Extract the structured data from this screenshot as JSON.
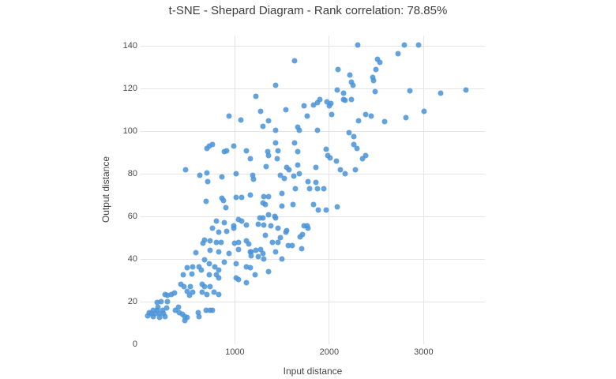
{
  "title": "t-SNE - Shepard Diagram - Rank correlation: 78.85%",
  "colors": {
    "background": "#ffffff",
    "marker": "#4B94D8",
    "gridline": "#e5e5e5",
    "text": "#444444"
  },
  "chart_data": {
    "type": "scatter",
    "title": "t-SNE - Shepard Diagram - Rank correlation: 78.85%",
    "xlabel": "Input distance",
    "ylabel": "Output distance",
    "xlim": [
      0,
      3650
    ],
    "ylim": [
      0,
      145
    ],
    "x_ticks": [
      1000,
      2000,
      3000
    ],
    "y_ticks": [
      0,
      20,
      40,
      60,
      80,
      100,
      120,
      140
    ],
    "grid": true,
    "legend": false,
    "marker_color": "#4B94D8",
    "points": [
      [
        940,
        107
      ],
      [
        1065,
        105.5
      ],
      [
        2305,
        140.5
      ],
      [
        1630,
        133
      ],
      [
        2513,
        134
      ],
      [
        2538,
        132.5
      ],
      [
        2495,
        129
      ],
      [
        2095,
        129
      ],
      [
        2220,
        126.5
      ],
      [
        2462,
        125.5
      ],
      [
        2471,
        124
      ],
      [
        1430,
        121.5
      ],
      [
        2235,
        123
      ],
      [
        2250,
        121.5
      ],
      [
        2085,
        119.5
      ],
      [
        1225,
        116.5
      ],
      [
        2150,
        118
      ],
      [
        2235,
        115
      ],
      [
        2485,
        118.5
      ],
      [
        1270,
        109.5
      ],
      [
        1540,
        110
      ],
      [
        1730,
        112
      ],
      [
        1765,
        107
      ],
      [
        1830,
        112.5
      ],
      [
        1875,
        113.5
      ],
      [
        1900,
        115
      ],
      [
        1975,
        114
      ],
      [
        2000,
        112
      ],
      [
        2015,
        113
      ],
      [
        2025,
        108
      ],
      [
        2150,
        115
      ],
      [
        2170,
        114.5
      ],
      [
        1295,
        102.5
      ],
      [
        1360,
        105
      ],
      [
        1435,
        100.5
      ],
      [
        1670,
        102
      ],
      [
        1680,
        100.5
      ],
      [
        1875,
        100.5
      ],
      [
        2390,
        108
      ],
      [
        2445,
        107
      ],
      [
        2310,
        105
      ],
      [
        2210,
        99.5
      ],
      [
        2260,
        97.5
      ],
      [
        2800,
        140.5
      ],
      [
        2945,
        140.5
      ],
      [
        2730,
        136.5
      ],
      [
        2855,
        119
      ],
      [
        3185,
        118
      ],
      [
        3445,
        119.5
      ],
      [
        3005,
        109.5
      ],
      [
        2810,
        106.5
      ],
      [
        2590,
        104.5
      ],
      [
        480,
        82
      ],
      [
        700,
        92
      ],
      [
        730,
        93
      ],
      [
        765,
        94
      ],
      [
        890,
        90.5
      ],
      [
        915,
        91
      ],
      [
        985,
        93
      ],
      [
        1120,
        91
      ],
      [
        1160,
        87
      ],
      [
        630,
        79.5
      ],
      [
        705,
        80.5
      ],
      [
        865,
        78.5
      ],
      [
        1010,
        80
      ],
      [
        715,
        76.5
      ],
      [
        695,
        67
      ],
      [
        865,
        68.5
      ],
      [
        875,
        67.5
      ],
      [
        1015,
        69
      ],
      [
        1075,
        69
      ],
      [
        900,
        64
      ],
      [
        805,
        58
      ],
      [
        890,
        57
      ],
      [
        765,
        54.5
      ],
      [
        830,
        52.5
      ],
      [
        910,
        53
      ],
      [
        985,
        55.5
      ],
      [
        990,
        54.5
      ],
      [
        1040,
        58.5
      ],
      [
        1075,
        58
      ],
      [
        1125,
        56
      ],
      [
        680,
        49
      ],
      [
        740,
        48.5
      ],
      [
        805,
        48
      ],
      [
        1120,
        48.5
      ],
      [
        1165,
        70
      ],
      [
        1430,
        94.5
      ],
      [
        1630,
        94.5
      ],
      [
        1455,
        91
      ],
      [
        1345,
        90.5
      ],
      [
        1360,
        88.5
      ],
      [
        1445,
        87
      ],
      [
        1665,
        90.5
      ],
      [
        1965,
        91.5
      ],
      [
        1985,
        88.5
      ],
      [
        2010,
        87.5
      ],
      [
        2075,
        86
      ],
      [
        2260,
        94
      ],
      [
        2295,
        92
      ],
      [
        2355,
        87
      ],
      [
        2390,
        88.5
      ],
      [
        1330,
        83.5
      ],
      [
        1545,
        83
      ],
      [
        1570,
        82
      ],
      [
        1665,
        84
      ],
      [
        1680,
        80
      ],
      [
        1855,
        83
      ],
      [
        2120,
        82
      ],
      [
        2170,
        80
      ],
      [
        2275,
        82
      ],
      [
        1185,
        79.5
      ],
      [
        1200,
        77.5
      ],
      [
        1480,
        79.5
      ],
      [
        1520,
        78
      ],
      [
        1620,
        79
      ],
      [
        1775,
        76.5
      ],
      [
        1790,
        73
      ],
      [
        1855,
        76
      ],
      [
        1875,
        73
      ],
      [
        1940,
        73
      ],
      [
        1305,
        69.5
      ],
      [
        1355,
        69.5
      ],
      [
        1495,
        71
      ],
      [
        1640,
        73
      ],
      [
        1295,
        66.5
      ],
      [
        1320,
        65.5
      ],
      [
        1495,
        65
      ],
      [
        1615,
        65.5
      ],
      [
        1830,
        65.5
      ],
      [
        1880,
        63
      ],
      [
        1965,
        63
      ],
      [
        2085,
        64.5
      ],
      [
        1355,
        61
      ],
      [
        1260,
        59.5
      ],
      [
        1295,
        59.5
      ],
      [
        1420,
        60
      ],
      [
        1435,
        59.5
      ],
      [
        1245,
        56.5
      ],
      [
        1310,
        56
      ],
      [
        1380,
        55.5
      ],
      [
        1460,
        54.5
      ],
      [
        1540,
        52.5
      ],
      [
        1545,
        53.5
      ],
      [
        1730,
        55.5
      ],
      [
        1765,
        55.5
      ],
      [
        1775,
        54.5
      ],
      [
        1320,
        51
      ],
      [
        1485,
        50
      ],
      [
        1690,
        50.5
      ],
      [
        1715,
        51.5
      ],
      [
        665,
        47.5
      ],
      [
        850,
        48
      ],
      [
        1000,
        47.5
      ],
      [
        1040,
        48
      ],
      [
        1145,
        47
      ],
      [
        590,
        43
      ],
      [
        740,
        44
      ],
      [
        825,
        43.5
      ],
      [
        935,
        42.5
      ],
      [
        1040,
        44.5
      ],
      [
        1160,
        43.5
      ],
      [
        1170,
        41.5
      ],
      [
        680,
        39.5
      ],
      [
        890,
        38.5
      ],
      [
        730,
        38
      ],
      [
        490,
        36
      ],
      [
        555,
        36.5
      ],
      [
        620,
        36.5
      ],
      [
        645,
        35
      ],
      [
        790,
        36.5
      ],
      [
        825,
        35
      ],
      [
        1015,
        38
      ],
      [
        1120,
        36.5
      ],
      [
        1160,
        36
      ],
      [
        455,
        32.5
      ],
      [
        540,
        33
      ],
      [
        725,
        32.5
      ],
      [
        805,
        32.5
      ],
      [
        825,
        31
      ],
      [
        1015,
        31
      ],
      [
        1040,
        30.5
      ],
      [
        1125,
        29
      ],
      [
        430,
        28
      ],
      [
        460,
        27
      ],
      [
        530,
        27
      ],
      [
        655,
        28
      ],
      [
        680,
        27
      ],
      [
        740,
        27
      ],
      [
        260,
        23.5
      ],
      [
        285,
        23
      ],
      [
        330,
        23.5
      ],
      [
        360,
        24
      ],
      [
        495,
        25
      ],
      [
        515,
        23
      ],
      [
        555,
        24.5
      ],
      [
        655,
        24.5
      ],
      [
        705,
        23.5
      ],
      [
        775,
        24.5
      ],
      [
        825,
        23.5
      ],
      [
        175,
        19.5
      ],
      [
        220,
        20
      ],
      [
        285,
        20
      ],
      [
        185,
        17.5
      ],
      [
        405,
        17.5
      ],
      [
        135,
        16
      ],
      [
        175,
        16
      ],
      [
        235,
        16
      ],
      [
        275,
        17
      ],
      [
        370,
        16
      ],
      [
        695,
        16
      ],
      [
        740,
        16
      ],
      [
        90,
        15
      ],
      [
        120,
        14.5
      ],
      [
        160,
        14.5
      ],
      [
        200,
        14.5
      ],
      [
        245,
        14.5
      ],
      [
        410,
        15
      ],
      [
        445,
        14
      ],
      [
        615,
        15
      ],
      [
        765,
        16
      ],
      [
        75,
        13.5
      ],
      [
        135,
        13
      ],
      [
        200,
        12.5
      ],
      [
        260,
        13
      ],
      [
        470,
        13
      ],
      [
        495,
        12.5
      ],
      [
        620,
        13
      ],
      [
        470,
        11
      ],
      [
        1395,
        48
      ],
      [
        1460,
        48
      ],
      [
        1565,
        46.5
      ],
      [
        1605,
        46.5
      ],
      [
        1705,
        45
      ],
      [
        1175,
        43.5
      ],
      [
        1225,
        44
      ],
      [
        1270,
        44.5
      ],
      [
        1295,
        42.5
      ],
      [
        1250,
        41
      ],
      [
        1310,
        40
      ],
      [
        1435,
        43.5
      ],
      [
        1495,
        40
      ],
      [
        1355,
        34
      ],
      [
        1210,
        32.5
      ]
    ]
  }
}
